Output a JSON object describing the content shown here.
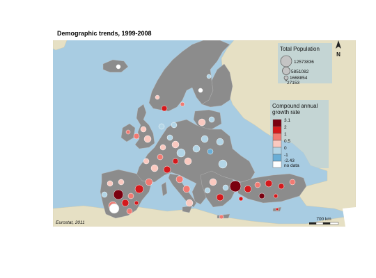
{
  "title": "Demographic trends, 1999-2008",
  "credit": "Eurostat, 2011",
  "north_label": "N",
  "scale_bar_label": "700 km",
  "population_legend": {
    "title": "Total Population",
    "entries": [
      {
        "label": "12573836",
        "value": 12573836
      },
      {
        "label": "5851082",
        "value": 5851082
      },
      {
        "label": "1668854",
        "value": 1668854
      },
      {
        "label": "27153",
        "value": 27153
      }
    ]
  },
  "growth_legend": {
    "title_line1": "Compound annual",
    "title_line2": "growth rate",
    "breaks": [
      "3.1",
      "2",
      "1",
      "0.5",
      "0",
      "-1",
      "-2.43"
    ],
    "classes": [
      {
        "color": "#7a0010",
        "range": [
          2,
          3.1
        ]
      },
      {
        "color": "#d4191c",
        "range": [
          1,
          2
        ]
      },
      {
        "color": "#f07a72",
        "range": [
          0.5,
          1
        ]
      },
      {
        "color": "#fac9c0",
        "range": [
          0,
          0.5
        ]
      },
      {
        "color": "#b3d5e6",
        "range": [
          -1,
          0
        ]
      },
      {
        "color": "#6aaed6",
        "range": [
          -2.43,
          -1
        ]
      }
    ],
    "no_data_label": "no data",
    "no_data_color": "#ffffff"
  },
  "colors": {
    "sea": "#a8cce2",
    "land_data": "#8c8c8c",
    "land_outside": "#e6e0c4",
    "region_border": "#bdbdbd"
  }
}
